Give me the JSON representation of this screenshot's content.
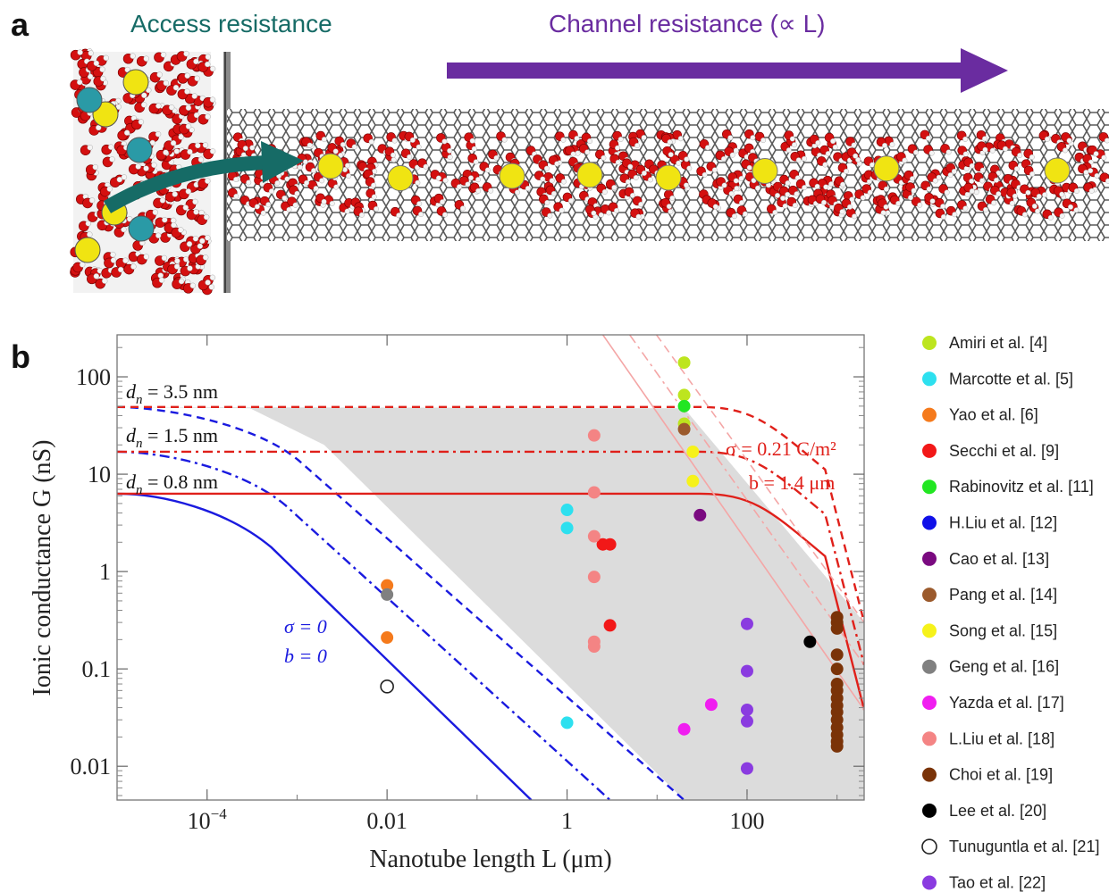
{
  "panel_a": {
    "label": "a",
    "access_title": "Access resistance",
    "channel_title": "Channel resistance (∝ L)",
    "colors": {
      "access": "#166b66",
      "channel": "#6a2ca0"
    }
  },
  "chart_data": {
    "type": "scatter",
    "panel_label": "b",
    "xlabel": "Nanotube length L (μm)",
    "ylabel": "Ionic conductance G (nS)",
    "xscale": "log",
    "yscale": "log",
    "xlim": [
      1e-05,
      2000
    ],
    "ylim": [
      0.0045,
      270
    ],
    "xticks": [
      {
        "value": 0.0001,
        "base": "10",
        "exp": "−4"
      },
      {
        "value": 0.01,
        "label": "0.01"
      },
      {
        "value": 1,
        "label": "1"
      },
      {
        "value": 100,
        "label": "100"
      }
    ],
    "yticks": [
      {
        "value": 100,
        "label": "100"
      },
      {
        "value": 10,
        "label": "10"
      },
      {
        "value": 1,
        "label": "1"
      },
      {
        "value": 0.1,
        "label": "0.1"
      },
      {
        "value": 0.01,
        "label": "0.01"
      }
    ],
    "annotations": {
      "d35": {
        "var": "d",
        "sub": "n",
        "rest": " = 3.5 nm"
      },
      "d15": {
        "var": "d",
        "sub": "n",
        "rest": " = 1.5 nm"
      },
      "d08": {
        "var": "d",
        "sub": "n",
        "rest": " = 0.8 nm"
      },
      "sigma0": "σ = 0",
      "b0": "b = 0",
      "sigma": "σ = 0.21 C/m²",
      "bval": "b = 1.4 μm"
    },
    "colors": {
      "blue": "#1a1adf",
      "red": "#e0201a",
      "pink": "#f4a6a6",
      "shade": "#dcdcdc"
    },
    "curves": [
      {
        "family": "blue",
        "style": "solid",
        "G0": 6.3,
        "slope_end": [
          0.4,
          0.0045
        ]
      },
      {
        "family": "blue",
        "style": "dashdot",
        "G0": 17,
        "slope_end": [
          3,
          0.0045
        ]
      },
      {
        "family": "blue",
        "style": "dashed",
        "G0": 49,
        "slope_end": [
          20,
          0.0045
        ]
      },
      {
        "family": "red",
        "style": "solid",
        "G0": 6.3,
        "knee_end": [
          2000,
          0.038
        ]
      },
      {
        "family": "red",
        "style": "dashdot",
        "G0": 17,
        "knee_end": [
          2000,
          0.11
        ]
      },
      {
        "family": "red",
        "style": "dashed",
        "G0": 49,
        "knee_end": [
          2000,
          0.3
        ]
      },
      {
        "family": "pink",
        "style": "solid",
        "G0": 270,
        "slope_end": [
          2000,
          0.038
        ]
      },
      {
        "family": "pink",
        "style": "dashdot",
        "G0": 270,
        "slope_end": [
          2000,
          0.11
        ]
      },
      {
        "family": "pink",
        "style": "dashed",
        "G0": 270,
        "slope_end": [
          2000,
          0.3
        ]
      }
    ],
    "series": [
      {
        "name": "Amiri et al. [4]",
        "color": "#bde51e",
        "points": [
          [
            20,
            140
          ],
          [
            20,
            65
          ],
          [
            20,
            33
          ]
        ]
      },
      {
        "name": "Marcotte et al. [5]",
        "color": "#2de0ef",
        "points": [
          [
            1,
            4.3
          ],
          [
            1,
            2.8
          ],
          [
            1,
            0.028
          ]
        ]
      },
      {
        "name": "Yao et al. [6]",
        "color": "#f57a1c",
        "points": [
          [
            0.01,
            0.72
          ],
          [
            0.01,
            0.21
          ]
        ]
      },
      {
        "name": "Secchi et al. [9]",
        "color": "#f21818",
        "points": [
          [
            2.5,
            1.9
          ],
          [
            3,
            1.9
          ],
          [
            3,
            0.28
          ]
        ]
      },
      {
        "name": "Rabinovitz et al. [11]",
        "color": "#22e622",
        "points": [
          [
            20,
            50
          ]
        ]
      },
      {
        "name": "H.Liu et al. [12]",
        "color": "#1010e8",
        "points": []
      },
      {
        "name": "Cao et al. [13]",
        "color": "#7a0a80",
        "points": [
          [
            30,
            3.8
          ]
        ]
      },
      {
        "name": "Pang et al. [14]",
        "color": "#9b5a2c",
        "points": [
          [
            20,
            29
          ]
        ]
      },
      {
        "name": "Song et al. [15]",
        "color": "#f6f21a",
        "points": [
          [
            25,
            17
          ],
          [
            25,
            8.5
          ]
        ]
      },
      {
        "name": "Geng et al. [16]",
        "color": "#808080",
        "points": [
          [
            0.01,
            0.58
          ]
        ]
      },
      {
        "name": "Yazda et al. [17]",
        "color": "#f01ef0",
        "points": [
          [
            20,
            0.024
          ],
          [
            40,
            0.043
          ]
        ]
      },
      {
        "name": "L.Liu et al. [18]",
        "color": "#f48484",
        "points": [
          [
            2,
            25
          ],
          [
            2,
            6.5
          ],
          [
            2,
            2.3
          ],
          [
            2,
            0.88
          ],
          [
            2,
            0.19
          ],
          [
            2,
            0.17
          ]
        ]
      },
      {
        "name": "Choi et al. [19]",
        "color": "#7a3308",
        "points": [
          [
            1000,
            0.34
          ],
          [
            1000,
            0.3
          ],
          [
            1000,
            0.26
          ],
          [
            1000,
            0.14
          ],
          [
            1000,
            0.1
          ],
          [
            1000,
            0.07
          ],
          [
            1000,
            0.06
          ],
          [
            1000,
            0.05
          ],
          [
            1000,
            0.042
          ],
          [
            1000,
            0.036
          ],
          [
            1000,
            0.03
          ],
          [
            1000,
            0.025
          ],
          [
            1000,
            0.021
          ],
          [
            1000,
            0.018
          ],
          [
            1000,
            0.016
          ]
        ]
      },
      {
        "name": "Lee et al. [20]",
        "color": "#000000",
        "points": [
          [
            500,
            0.19
          ]
        ]
      },
      {
        "name": "Tunuguntla et al. [21]",
        "color": "#000000",
        "hollow": true,
        "points": [
          [
            0.01,
            0.066
          ]
        ]
      },
      {
        "name": "Tao et al. [22]",
        "color": "#8a3be0",
        "points": [
          [
            100,
            0.29
          ],
          [
            100,
            0.095
          ],
          [
            100,
            0.038
          ],
          [
            100,
            0.029
          ],
          [
            100,
            0.0095
          ]
        ]
      }
    ]
  }
}
